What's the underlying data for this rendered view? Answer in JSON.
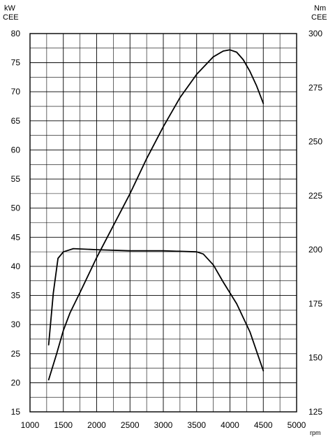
{
  "chart_data": {
    "type": "line",
    "title": "",
    "xlabel": "rpm",
    "xlim": [
      1000,
      5000
    ],
    "x_ticks": [
      "1000",
      "1500",
      "2000",
      "2500",
      "3000",
      "3500",
      "4000",
      "4500",
      "5000"
    ],
    "y_left": {
      "label_line1": "kW",
      "label_line2": "CEE",
      "lim": [
        15,
        80
      ],
      "ticks": [
        "15",
        "20",
        "25",
        "30",
        "35",
        "40",
        "45",
        "50",
        "55",
        "60",
        "65",
        "70",
        "75",
        "80"
      ]
    },
    "y_right": {
      "label_line1": "Nm",
      "label_line2": "CEE",
      "lim": [
        125,
        300
      ],
      "ticks": [
        "125",
        "150",
        "175",
        "200",
        "225",
        "250",
        "275",
        "300"
      ]
    },
    "grid": true,
    "series": [
      {
        "axis": "left",
        "x": [
          1280,
          1400,
          1500,
          1600,
          1750,
          2000,
          2250,
          2500,
          2750,
          3000,
          3250,
          3500,
          3750,
          3900,
          4000,
          4100,
          4200,
          4300,
          4400,
          4500
        ],
        "values": [
          20.5,
          25.0,
          29.0,
          32.0,
          35.5,
          41.5,
          47.0,
          52.5,
          58.5,
          64.0,
          69.0,
          73.0,
          76.0,
          77.0,
          77.2,
          76.8,
          75.5,
          73.5,
          71.0,
          68.0
        ]
      },
      {
        "axis": "right",
        "x": [
          1280,
          1350,
          1420,
          1500,
          1650,
          2000,
          2500,
          3000,
          3500,
          3600,
          3750,
          3900,
          4100,
          4300,
          4500
        ],
        "values": [
          156,
          180,
          196,
          199,
          200.5,
          200,
          199.5,
          199.5,
          199,
          198,
          193,
          185,
          175,
          162,
          144
        ]
      }
    ]
  }
}
